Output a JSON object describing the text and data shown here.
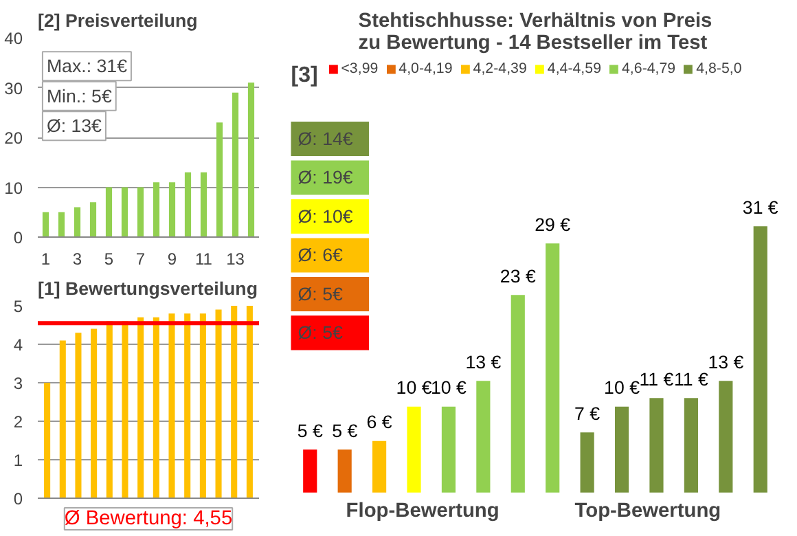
{
  "chart_data": [
    {
      "type": "bar",
      "title": "[2] Preisverteilung",
      "x": [
        1,
        2,
        3,
        4,
        5,
        6,
        7,
        8,
        9,
        10,
        11,
        12,
        13,
        14
      ],
      "values": [
        5,
        5,
        6,
        7,
        10,
        10,
        10,
        11,
        11,
        13,
        13,
        23,
        29,
        31
      ],
      "color": "#92d050",
      "xlim": [
        0.5,
        14.5
      ],
      "xticks": [
        1,
        3,
        5,
        7,
        9,
        11,
        13
      ],
      "ylim": [
        0,
        40
      ],
      "yticks": [
        0,
        10,
        20,
        30,
        40
      ],
      "grid": "y",
      "annotations": [
        "Max.: 31€",
        "Min.: 5€",
        "Ø: 13€"
      ]
    },
    {
      "type": "bar",
      "title": "[1] Bewertungsverteilung",
      "categories": [
        null,
        null,
        null,
        null,
        null,
        null,
        null,
        null,
        null,
        null,
        null,
        null,
        null,
        null
      ],
      "values": [
        3.0,
        4.1,
        4.3,
        4.4,
        4.6,
        4.6,
        4.7,
        4.7,
        4.8,
        4.8,
        4.8,
        4.9,
        5.0,
        5.0
      ],
      "color": "#ffc000",
      "ylim": [
        0,
        5
      ],
      "yticks": [
        0,
        1,
        2,
        3,
        4,
        5
      ],
      "grid": "y",
      "ref_lines": [
        {
          "axis": "y",
          "value": 4.55,
          "color": "#ff0000"
        }
      ],
      "annotations": [
        "Ø Bewertung: 4,55"
      ]
    },
    {
      "type": "bar",
      "title": "Stehtischhusse: Verhältnis von Preis zu Bewertung - 14 Bestseller im Test",
      "categories": [
        null,
        null,
        null,
        null,
        null,
        null,
        null,
        null,
        null,
        null,
        null,
        null,
        null,
        null
      ],
      "legend": "top",
      "stacked": true,
      "series": [
        {
          "name": "<3,99",
          "color": "#ff0000",
          "values": [
            5,
            null,
            null,
            null,
            null,
            null,
            null,
            null,
            null,
            null,
            null,
            null,
            null,
            null
          ],
          "value_labels": [
            "5 €",
            null,
            null,
            null,
            null,
            null,
            null,
            null,
            null,
            null,
            null,
            null,
            null,
            null
          ]
        },
        {
          "name": "4,0-4,19",
          "color": "#e46c0a",
          "values": [
            null,
            5,
            null,
            null,
            null,
            null,
            null,
            null,
            null,
            null,
            null,
            null,
            null,
            null
          ],
          "value_labels": [
            null,
            "5 €",
            null,
            null,
            null,
            null,
            null,
            null,
            null,
            null,
            null,
            null,
            null,
            null
          ]
        },
        {
          "name": "4,2-4,39",
          "color": "#ffc000",
          "values": [
            null,
            null,
            6,
            null,
            null,
            null,
            null,
            null,
            null,
            null,
            null,
            null,
            null,
            null
          ],
          "value_labels": [
            null,
            null,
            "6 €",
            null,
            null,
            null,
            null,
            null,
            null,
            null,
            null,
            null,
            null,
            null
          ]
        },
        {
          "name": "4,4-4,59",
          "color": "#ffff00",
          "values": [
            null,
            null,
            null,
            10,
            null,
            null,
            null,
            null,
            null,
            null,
            null,
            null,
            null,
            null
          ],
          "value_labels": [
            null,
            null,
            null,
            "10 €",
            null,
            null,
            null,
            null,
            null,
            null,
            null,
            null,
            null,
            null
          ]
        },
        {
          "name": "4,6-4,79",
          "color": "#92d050",
          "values": [
            null,
            null,
            null,
            null,
            10,
            13,
            23,
            29,
            null,
            null,
            null,
            null,
            null,
            null
          ],
          "value_labels": [
            null,
            null,
            null,
            null,
            "10 €",
            "13 €",
            "23 €",
            "29 €",
            null,
            null,
            null,
            null,
            null,
            null
          ]
        },
        {
          "name": "4,8-5,0",
          "color": "#77933c",
          "values": [
            null,
            null,
            null,
            null,
            null,
            null,
            null,
            null,
            7,
            10,
            11,
            11,
            13,
            31
          ],
          "value_labels": [
            null,
            null,
            null,
            null,
            null,
            null,
            null,
            null,
            "7 €",
            "10 €",
            "11 €",
            "11 €",
            "13 €",
            "31 €"
          ]
        }
      ],
      "annotations": [
        "[3]",
        "Ø: 14€",
        "Ø: 19€",
        "Ø: 10€",
        "Ø: 6€",
        "Ø: 5€",
        "Ø: 5€",
        "Flop-Bewertung",
        "Top-Bewertung"
      ]
    }
  ]
}
